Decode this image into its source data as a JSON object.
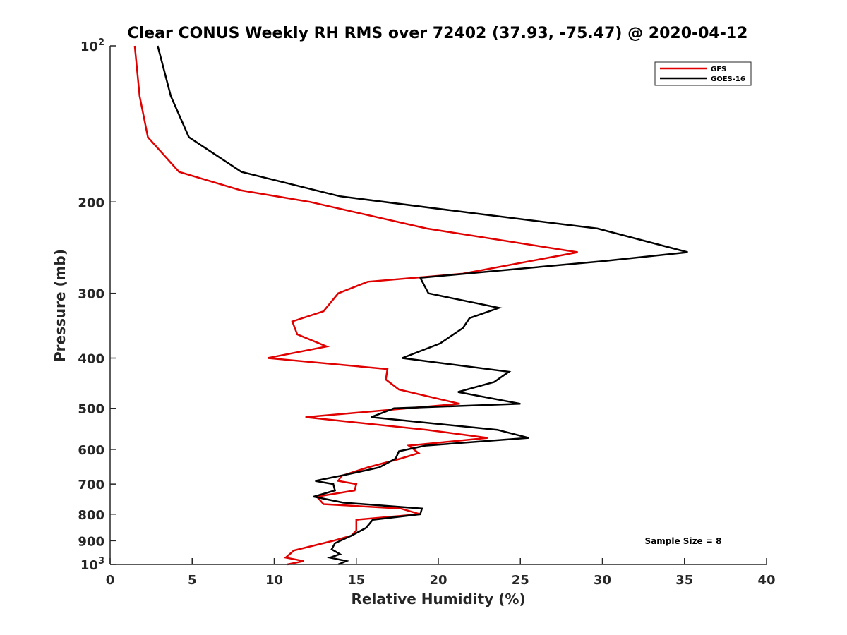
{
  "chart_data": {
    "type": "line",
    "title": "Clear CONUS Weekly RH RMS over 72402 (37.93, -75.47) @ 2020-04-12",
    "xlabel": "Relative Humidity (%)",
    "ylabel": "Pressure (mb)",
    "xlim": [
      0,
      40
    ],
    "ylim": [
      100,
      1000
    ],
    "yscale": "log",
    "y_reversed": true,
    "grid": false,
    "x_ticks": [
      0,
      5,
      10,
      15,
      20,
      25,
      30,
      35,
      40
    ],
    "x_tick_labels": [
      "0",
      "5",
      "10",
      "15",
      "20",
      "25",
      "30",
      "35",
      "40"
    ],
    "y_ticks": [
      100,
      200,
      300,
      400,
      500,
      600,
      700,
      800,
      900,
      1000
    ],
    "y_tick_labels": [
      {
        "base": "10",
        "exp": "2"
      },
      {
        "base": "200",
        "exp": ""
      },
      {
        "base": "300",
        "exp": ""
      },
      {
        "base": "400",
        "exp": ""
      },
      {
        "base": "500",
        "exp": ""
      },
      {
        "base": "600",
        "exp": ""
      },
      {
        "base": "700",
        "exp": ""
      },
      {
        "base": "800",
        "exp": ""
      },
      {
        "base": "900",
        "exp": ""
      },
      {
        "base": "10",
        "exp": "3"
      }
    ],
    "legend_position": "top-right",
    "series": [
      {
        "name": "GFS",
        "color": "#e00000",
        "points": [
          {
            "rh": 1.5,
            "p": 100
          },
          {
            "rh": 1.8,
            "p": 125
          },
          {
            "rh": 2.3,
            "p": 150
          },
          {
            "rh": 4.2,
            "p": 175
          },
          {
            "rh": 8.0,
            "p": 190
          },
          {
            "rh": 12.2,
            "p": 200
          },
          {
            "rh": 19.3,
            "p": 225
          },
          {
            "rh": 28.5,
            "p": 250
          },
          {
            "rh": 21.5,
            "p": 275
          },
          {
            "rh": 15.7,
            "p": 285
          },
          {
            "rh": 13.9,
            "p": 300
          },
          {
            "rh": 13.0,
            "p": 325
          },
          {
            "rh": 11.1,
            "p": 340
          },
          {
            "rh": 11.4,
            "p": 360
          },
          {
            "rh": 13.2,
            "p": 380
          },
          {
            "rh": 9.6,
            "p": 400
          },
          {
            "rh": 16.9,
            "p": 420
          },
          {
            "rh": 16.8,
            "p": 440
          },
          {
            "rh": 17.6,
            "p": 460
          },
          {
            "rh": 21.3,
            "p": 490
          },
          {
            "rh": 11.9,
            "p": 520
          },
          {
            "rh": 19.3,
            "p": 550
          },
          {
            "rh": 23.0,
            "p": 570
          },
          {
            "rh": 18.2,
            "p": 590
          },
          {
            "rh": 18.8,
            "p": 610
          },
          {
            "rh": 17.7,
            "p": 625
          },
          {
            "rh": 15.7,
            "p": 650
          },
          {
            "rh": 14.1,
            "p": 675
          },
          {
            "rh": 13.9,
            "p": 690
          },
          {
            "rh": 15.0,
            "p": 700
          },
          {
            "rh": 14.9,
            "p": 720
          },
          {
            "rh": 12.6,
            "p": 740
          },
          {
            "rh": 13.0,
            "p": 765
          },
          {
            "rh": 17.7,
            "p": 780
          },
          {
            "rh": 18.9,
            "p": 800
          },
          {
            "rh": 15.0,
            "p": 820
          },
          {
            "rh": 15.0,
            "p": 860
          },
          {
            "rh": 14.7,
            "p": 880
          },
          {
            "rh": 13.6,
            "p": 900
          },
          {
            "rh": 11.2,
            "p": 940
          },
          {
            "rh": 10.7,
            "p": 970
          },
          {
            "rh": 11.8,
            "p": 985
          },
          {
            "rh": 10.8,
            "p": 1000
          }
        ]
      },
      {
        "name": "GOES-16",
        "color": "#000000",
        "points": [
          {
            "rh": 2.9,
            "p": 100
          },
          {
            "rh": 3.7,
            "p": 125
          },
          {
            "rh": 4.8,
            "p": 150
          },
          {
            "rh": 8.0,
            "p": 175
          },
          {
            "rh": 14.0,
            "p": 195
          },
          {
            "rh": 22.0,
            "p": 210
          },
          {
            "rh": 29.7,
            "p": 225
          },
          {
            "rh": 35.2,
            "p": 250
          },
          {
            "rh": 30.1,
            "p": 260
          },
          {
            "rh": 18.9,
            "p": 280
          },
          {
            "rh": 19.4,
            "p": 300
          },
          {
            "rh": 23.7,
            "p": 320
          },
          {
            "rh": 21.9,
            "p": 335
          },
          {
            "rh": 21.5,
            "p": 350
          },
          {
            "rh": 20.1,
            "p": 375
          },
          {
            "rh": 17.8,
            "p": 400
          },
          {
            "rh": 24.3,
            "p": 425
          },
          {
            "rh": 23.4,
            "p": 445
          },
          {
            "rh": 21.2,
            "p": 465
          },
          {
            "rh": 25.0,
            "p": 490
          },
          {
            "rh": 17.3,
            "p": 500
          },
          {
            "rh": 15.9,
            "p": 520
          },
          {
            "rh": 23.6,
            "p": 550
          },
          {
            "rh": 25.5,
            "p": 570
          },
          {
            "rh": 19.2,
            "p": 590
          },
          {
            "rh": 17.6,
            "p": 605
          },
          {
            "rh": 17.4,
            "p": 625
          },
          {
            "rh": 16.4,
            "p": 650
          },
          {
            "rh": 14.5,
            "p": 670
          },
          {
            "rh": 12.5,
            "p": 690
          },
          {
            "rh": 13.6,
            "p": 700
          },
          {
            "rh": 13.7,
            "p": 720
          },
          {
            "rh": 12.4,
            "p": 740
          },
          {
            "rh": 14.2,
            "p": 760
          },
          {
            "rh": 19.0,
            "p": 780
          },
          {
            "rh": 18.9,
            "p": 800
          },
          {
            "rh": 16.0,
            "p": 820
          },
          {
            "rh": 15.6,
            "p": 850
          },
          {
            "rh": 14.7,
            "p": 880
          },
          {
            "rh": 13.7,
            "p": 910
          },
          {
            "rh": 13.5,
            "p": 935
          },
          {
            "rh": 14.0,
            "p": 955
          },
          {
            "rh": 13.4,
            "p": 970
          },
          {
            "rh": 14.4,
            "p": 985
          },
          {
            "rh": 13.9,
            "p": 1000
          }
        ]
      }
    ],
    "annotation": "Sample Size = 8"
  }
}
